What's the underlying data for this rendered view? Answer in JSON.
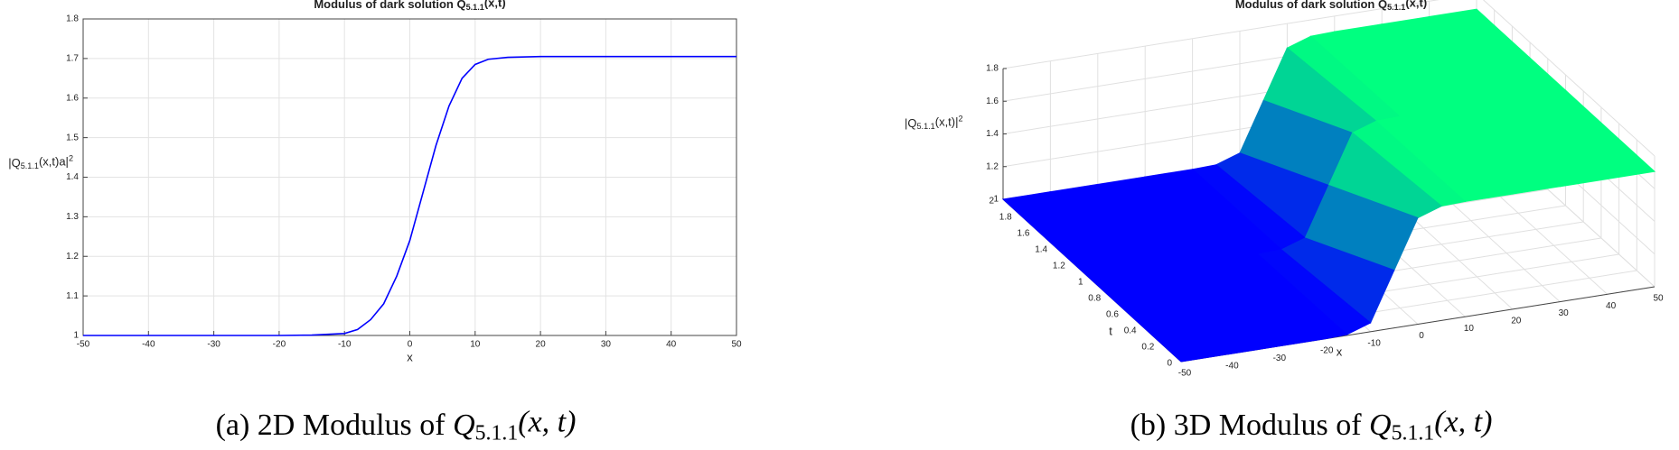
{
  "chart_data": [
    {
      "type": "line",
      "title": {
        "text": "Modulus of dark solution Q",
        "sub": "5.1.1",
        "after": "(x,t)"
      },
      "xlabel": "x",
      "ylabel": {
        "text": "|Q",
        "sub": "5.1.1",
        "after": "(x,t)a|",
        "sup": "2"
      },
      "x": [
        -50,
        -40,
        -30,
        -20,
        -15,
        -10,
        -8,
        -6,
        -4,
        -2,
        0,
        2,
        4,
        6,
        8,
        10,
        12,
        15,
        20,
        30,
        40,
        50
      ],
      "values": [
        1,
        1,
        1,
        1,
        1.001,
        1.005,
        1.015,
        1.04,
        1.08,
        1.15,
        1.24,
        1.36,
        1.48,
        1.58,
        1.65,
        1.685,
        1.698,
        1.703,
        1.705,
        1.705,
        1.705,
        1.705
      ],
      "color": "#0000ff",
      "xlim": [
        -50,
        50
      ],
      "xticks": [
        -50,
        -40,
        -30,
        -20,
        -10,
        0,
        10,
        20,
        30,
        40,
        50
      ],
      "ylim": [
        1,
        1.8
      ],
      "yticks": [
        1,
        1.1,
        1.2,
        1.3,
        1.4,
        1.5,
        1.6,
        1.7,
        1.8
      ],
      "grid": true,
      "caption": {
        "text": "(a) 2D Modulus of ",
        "var": "Q",
        "sub": "5.1.1",
        "after": "(x, t)"
      }
    },
    {
      "type": "surface",
      "title": {
        "text": "Modulus of dark solution Q",
        "sub": "5.1.1",
        "after": "(x,t)"
      },
      "xlabel": "x",
      "tlabel": "t",
      "zlabel": {
        "text": "|Q",
        "sub": "5.1.1",
        "after": "(x,t)|",
        "sup": "2"
      },
      "x": [
        -50,
        -40,
        -30,
        -20,
        -15,
        -10,
        -5,
        0,
        5,
        10,
        15,
        20,
        30,
        40,
        50
      ],
      "t": [
        0,
        1,
        2
      ],
      "z": [
        [
          1,
          1,
          1,
          1,
          1.005,
          1.054,
          1.353,
          1.651,
          1.7,
          1.705,
          1.705,
          1.705,
          1.705,
          1.705,
          1.705
        ],
        [
          1,
          1,
          1,
          1,
          1,
          1.005,
          1.054,
          1.353,
          1.651,
          1.7,
          1.705,
          1.705,
          1.705,
          1.705,
          1.705
        ],
        [
          1,
          1,
          1,
          1,
          1,
          1,
          1.005,
          1.054,
          1.353,
          1.651,
          1.7,
          1.705,
          1.705,
          1.705,
          1.705
        ]
      ],
      "colormap": [
        "#0000ff",
        "#00ff80"
      ],
      "xlim": [
        -50,
        50
      ],
      "xticks": [
        -50,
        -40,
        -30,
        -20,
        -10,
        0,
        10,
        20,
        30,
        40,
        50
      ],
      "tlim": [
        0,
        2
      ],
      "tticks": [
        0,
        0.2,
        0.4,
        0.6,
        0.8,
        1,
        1.2,
        1.4,
        1.6,
        1.8,
        2
      ],
      "zlim": [
        1,
        1.8
      ],
      "zticks": [
        1,
        1.2,
        1.4,
        1.6,
        1.8
      ],
      "caption": {
        "text": "(b) 3D Modulus of ",
        "var": "Q",
        "sub": "5.1.1",
        "after": "(x, t)"
      }
    }
  ]
}
